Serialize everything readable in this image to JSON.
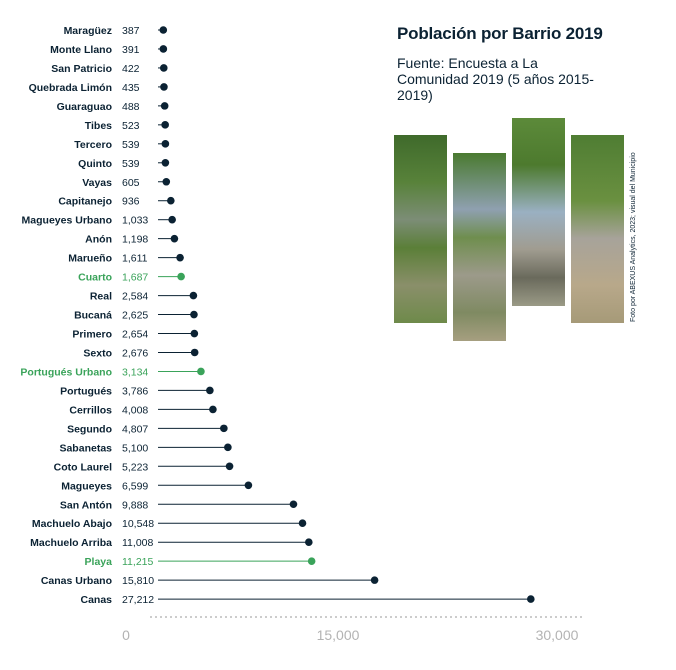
{
  "chart_data": {
    "type": "lollipop",
    "title": "Población por Barrio 2019",
    "subtitle": "Fuente: Encuesta a La Comunidad 2019 (5 años 2015-2019)",
    "xlim": [
      0,
      30000
    ],
    "xticks": [
      0,
      15000,
      30000
    ],
    "xtick_labels": [
      "0",
      "15,000",
      "30,000"
    ],
    "grid": false,
    "categories": [
      "Maragüez",
      "Monte Llano",
      "San Patricio",
      "Quebrada Limón",
      "Guaraguao",
      "Tibes",
      "Tercero",
      "Quinto",
      "Vayas",
      "Capitanejo",
      "Magueyes Urbano",
      "Anón",
      "Marueño",
      "Cuarto",
      "Real",
      "Bucaná",
      "Primero",
      "Sexto",
      "Portugués Urbano",
      "Portugués",
      "Cerrillos",
      "Segundo",
      "Sabanetas",
      "Coto Laurel",
      "Magueyes",
      "San Antón",
      "Machuelo Abajo",
      "Machuelo Arriba",
      "Playa",
      "Canas Urbano",
      "Canas"
    ],
    "value_labels": [
      "387",
      "391",
      "422",
      "435",
      "488",
      "523",
      "539",
      "539",
      "605",
      "936",
      "1,033",
      "1,198",
      "1,611",
      "1,687",
      "2,584",
      "2,625",
      "2,654",
      "2,676",
      "3,134",
      "3,786",
      "4,008",
      "4,807",
      "5,100",
      "5,223",
      "6,599",
      "9,888",
      "10,548",
      "11,008",
      "11,215",
      "15,810",
      "27,212"
    ],
    "values": [
      387,
      391,
      422,
      435,
      488,
      523,
      539,
      539,
      605,
      936,
      1033,
      1198,
      1611,
      1687,
      2584,
      2625,
      2654,
      2676,
      3134,
      3786,
      4008,
      4807,
      5100,
      5223,
      6599,
      9888,
      10548,
      11008,
      11215,
      15810,
      27212
    ],
    "highlighted": [
      "Cuarto",
      "Portugués Urbano",
      "Playa"
    ],
    "colors": {
      "default": "#0b2233",
      "highlight": "#3aa35a",
      "axis": "#9a9a9a",
      "tick": "#b3b3b3"
    }
  },
  "photo_credit": "Foto por ABEXUS Analytics, 2023; visual del Municipio"
}
